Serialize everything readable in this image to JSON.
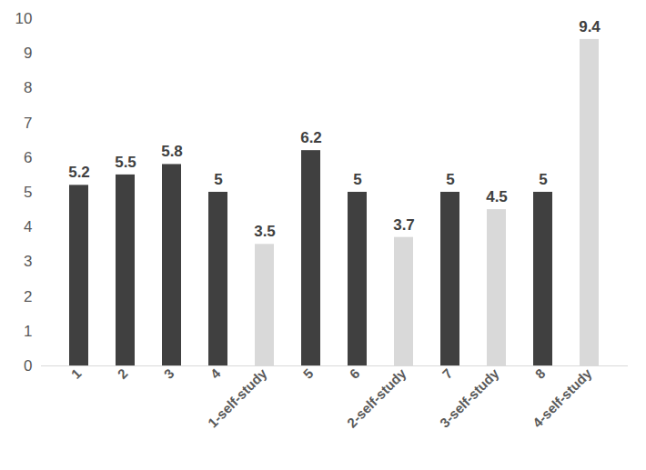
{
  "chart_data": {
    "type": "bar",
    "categories": [
      "1",
      "2",
      "3",
      "4",
      "1-self-study",
      "5",
      "6",
      "2-self-study",
      "7",
      "3-self-study",
      "8",
      "4-self-study"
    ],
    "values": [
      5.2,
      5.5,
      5.8,
      5,
      3.5,
      6.2,
      5,
      3.7,
      5,
      4.5,
      5,
      9.4
    ],
    "colors": [
      "#404040",
      "#404040",
      "#404040",
      "#404040",
      "#d9d9d9",
      "#404040",
      "#404040",
      "#d9d9d9",
      "#404040",
      "#d9d9d9",
      "#404040",
      "#d9d9d9"
    ],
    "ylim": [
      0,
      10
    ],
    "yticks": [
      0,
      1,
      2,
      3,
      4,
      5,
      6,
      7,
      8,
      9,
      10
    ],
    "grid": false,
    "data_labels": true
  }
}
